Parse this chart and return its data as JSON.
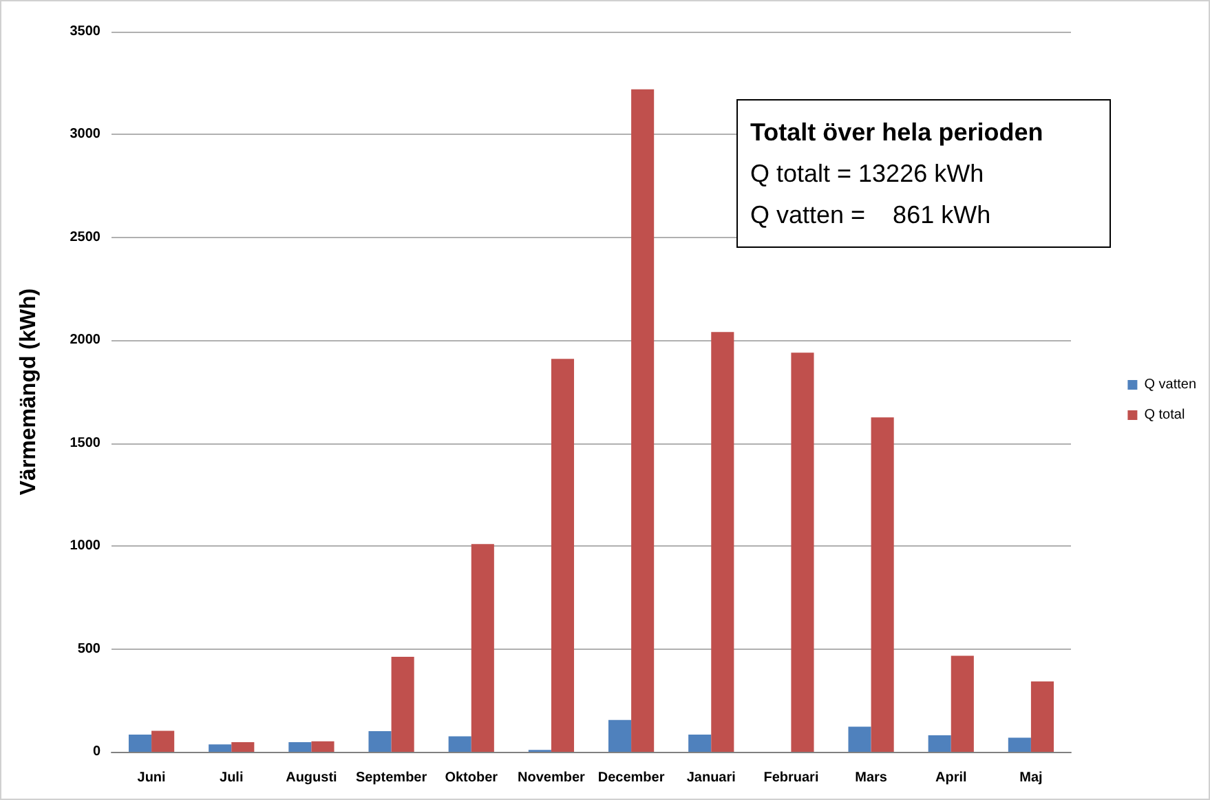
{
  "chart_data": {
    "type": "bar",
    "ylabel": "Värmemängd (kWh)",
    "categories": [
      "Juni",
      "Juli",
      "Augusti",
      "September",
      "Oktober",
      "November",
      "December",
      "Januari",
      "Februari",
      "Mars",
      "April",
      "Maj"
    ],
    "series": [
      {
        "name": "Q vatten",
        "color": "#4f81bd",
        "values": [
          84,
          36,
          47,
          100,
          75,
          9,
          155,
          84,
          0,
          122,
          80,
          69
        ]
      },
      {
        "name": "Q total",
        "color": "#c0504d",
        "values": [
          102,
          47,
          51,
          462,
          1010,
          1910,
          3220,
          2040,
          1940,
          1625,
          467,
          342
        ]
      }
    ],
    "ylim": [
      0,
      3500
    ],
    "yticks": [
      0,
      500,
      1000,
      1500,
      2000,
      2500,
      3000,
      3500
    ],
    "grid": "y",
    "legend": "right",
    "annotations": [
      "Totalt över hela perioden",
      "Q totalt = 13226 kWh",
      "Q vatten =    861 kWh"
    ]
  }
}
